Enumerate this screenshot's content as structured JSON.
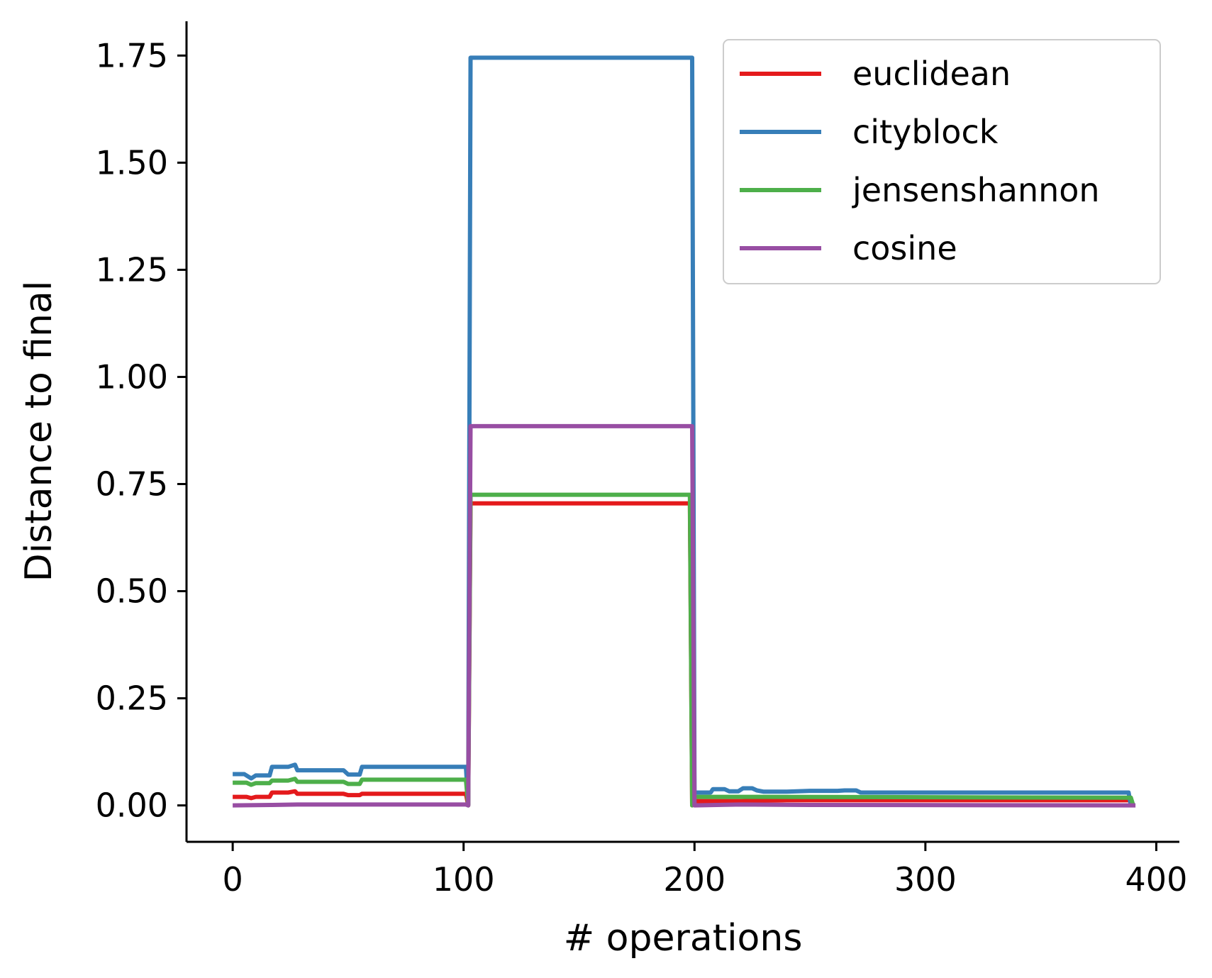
{
  "chart_data": {
    "type": "line",
    "xlabel": "# operations",
    "ylabel": "Distance to final",
    "xlim": [
      -20,
      410
    ],
    "ylim": [
      -0.085,
      1.83
    ],
    "x_ticks": [
      0,
      100,
      200,
      300,
      400
    ],
    "x_tick_labels": [
      "0",
      "100",
      "200",
      "300",
      "400"
    ],
    "y_ticks": [
      0,
      0.25,
      0.5,
      0.75,
      1.0,
      1.25,
      1.5,
      1.75
    ],
    "y_tick_labels": [
      "0.00",
      "0.25",
      "0.50",
      "0.75",
      "1.00",
      "1.25",
      "1.50",
      "1.75"
    ],
    "legend_position": "top-right",
    "grid": false,
    "series": [
      {
        "name": "euclidean",
        "color": "#e41a1c",
        "points": [
          [
            0,
            0.02
          ],
          [
            6,
            0.02
          ],
          [
            8,
            0.017
          ],
          [
            10,
            0.02
          ],
          [
            16,
            0.02
          ],
          [
            17,
            0.03
          ],
          [
            24,
            0.03
          ],
          [
            27,
            0.033
          ],
          [
            28,
            0.027
          ],
          [
            48,
            0.027
          ],
          [
            50,
            0.024
          ],
          [
            55,
            0.024
          ],
          [
            56,
            0.027
          ],
          [
            101,
            0.027
          ],
          [
            102,
            0.0
          ],
          [
            103,
            0.705
          ],
          [
            198,
            0.705
          ],
          [
            199,
            0.0
          ],
          [
            200,
            0.01
          ],
          [
            220,
            0.01
          ],
          [
            240,
            0.012
          ],
          [
            270,
            0.012
          ],
          [
            389,
            0.012
          ],
          [
            390,
            0.0
          ]
        ]
      },
      {
        "name": "cityblock",
        "color": "#377eb8",
        "points": [
          [
            0,
            0.073
          ],
          [
            5,
            0.073
          ],
          [
            8,
            0.063
          ],
          [
            10,
            0.07
          ],
          [
            16,
            0.07
          ],
          [
            17,
            0.09
          ],
          [
            24,
            0.09
          ],
          [
            27,
            0.095
          ],
          [
            28,
            0.082
          ],
          [
            48,
            0.082
          ],
          [
            50,
            0.072
          ],
          [
            55,
            0.072
          ],
          [
            56,
            0.09
          ],
          [
            101,
            0.09
          ],
          [
            102,
            0.0
          ],
          [
            103,
            1.745
          ],
          [
            199,
            1.745
          ],
          [
            200,
            0.03
          ],
          [
            207,
            0.03
          ],
          [
            208,
            0.038
          ],
          [
            213,
            0.038
          ],
          [
            215,
            0.033
          ],
          [
            219,
            0.033
          ],
          [
            221,
            0.04
          ],
          [
            225,
            0.04
          ],
          [
            227,
            0.035
          ],
          [
            230,
            0.032
          ],
          [
            240,
            0.032
          ],
          [
            250,
            0.034
          ],
          [
            262,
            0.034
          ],
          [
            265,
            0.035
          ],
          [
            270,
            0.035
          ],
          [
            272,
            0.03
          ],
          [
            388,
            0.03
          ],
          [
            389,
            0.0
          ]
        ]
      },
      {
        "name": "jensenshannon",
        "color": "#4daf4a",
        "points": [
          [
            0,
            0.053
          ],
          [
            6,
            0.053
          ],
          [
            8,
            0.048
          ],
          [
            10,
            0.052
          ],
          [
            16,
            0.052
          ],
          [
            17,
            0.058
          ],
          [
            24,
            0.058
          ],
          [
            27,
            0.062
          ],
          [
            28,
            0.055
          ],
          [
            48,
            0.055
          ],
          [
            50,
            0.05
          ],
          [
            55,
            0.05
          ],
          [
            56,
            0.06
          ],
          [
            101,
            0.06
          ],
          [
            102,
            0.0
          ],
          [
            103,
            0.725
          ],
          [
            198,
            0.725
          ],
          [
            199,
            0.0
          ],
          [
            200,
            0.02
          ],
          [
            230,
            0.02
          ],
          [
            389,
            0.018
          ],
          [
            390,
            0.0
          ]
        ]
      },
      {
        "name": "cosine",
        "color": "#984ea3",
        "points": [
          [
            0,
            0.0
          ],
          [
            17,
            0.001
          ],
          [
            28,
            0.002
          ],
          [
            101,
            0.002
          ],
          [
            102,
            0.0
          ],
          [
            103,
            0.885
          ],
          [
            199,
            0.885
          ],
          [
            200,
            0.0
          ],
          [
            220,
            0.002
          ],
          [
            250,
            0.001
          ],
          [
            391,
            0.0
          ]
        ]
      }
    ]
  }
}
